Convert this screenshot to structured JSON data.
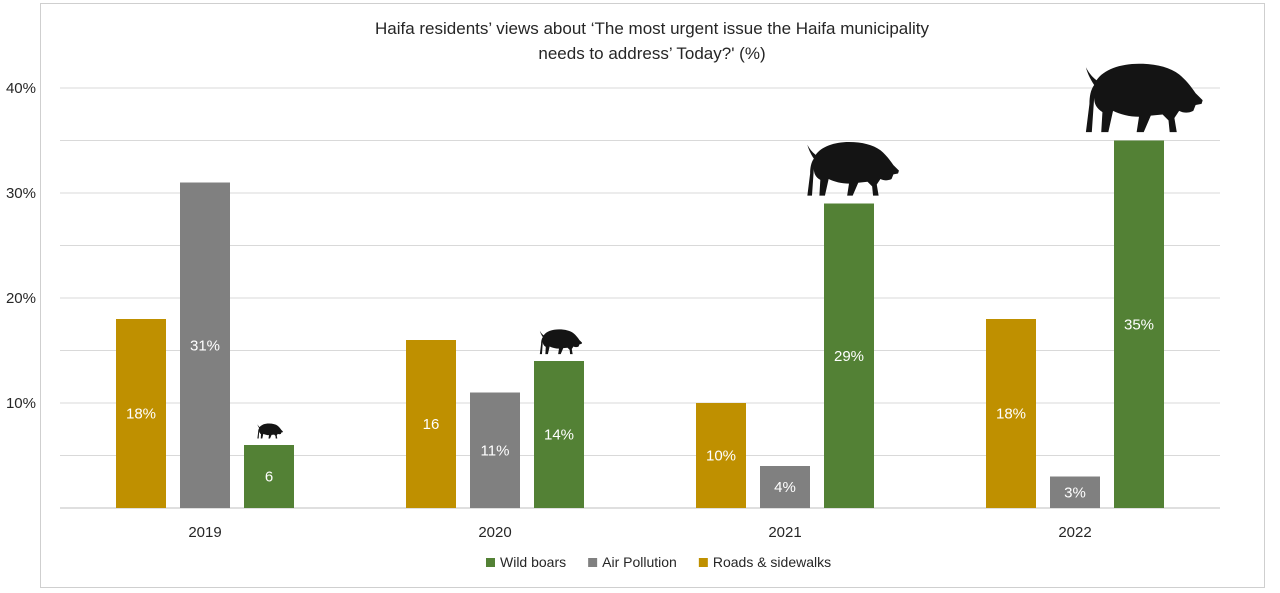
{
  "chart_data": {
    "type": "bar",
    "title_lines": [
      "Haifa residents’ views about ‘The most urgent issue the Haifa municipality",
      "needs to address’ Today?' (%)"
    ],
    "categories": [
      "2019",
      "2020",
      "2021",
      "2022"
    ],
    "ylim": [
      0,
      40
    ],
    "yticks": [
      10,
      20,
      30,
      40
    ],
    "ytick_labels": [
      "10%",
      "20%",
      "30%",
      "40%"
    ],
    "minor_gridlines": [
      5,
      15,
      25,
      35
    ],
    "grid": true,
    "legend_position": "bottom",
    "series": [
      {
        "name": "Roads & sidewalks",
        "color": "#bf9000",
        "values": [
          18,
          16,
          10,
          18
        ],
        "labels": [
          "18%",
          "16",
          "10%",
          "18%"
        ]
      },
      {
        "name": "Air Pollution",
        "color": "#808080",
        "values": [
          31,
          11,
          4,
          3
        ],
        "labels": [
          "31%",
          "11%",
          "4%",
          "3%"
        ]
      },
      {
        "name": "Wild boars",
        "color": "#538135",
        "values": [
          6,
          14,
          29,
          35
        ],
        "labels": [
          "6",
          "14%",
          "29%",
          "35%"
        ]
      }
    ],
    "legend_order": [
      "Wild boars",
      "Air Pollution",
      "Roads & sidewalks"
    ],
    "annotation_icon": "wild-boar-icon",
    "icon_scale_series": "Wild boars"
  }
}
